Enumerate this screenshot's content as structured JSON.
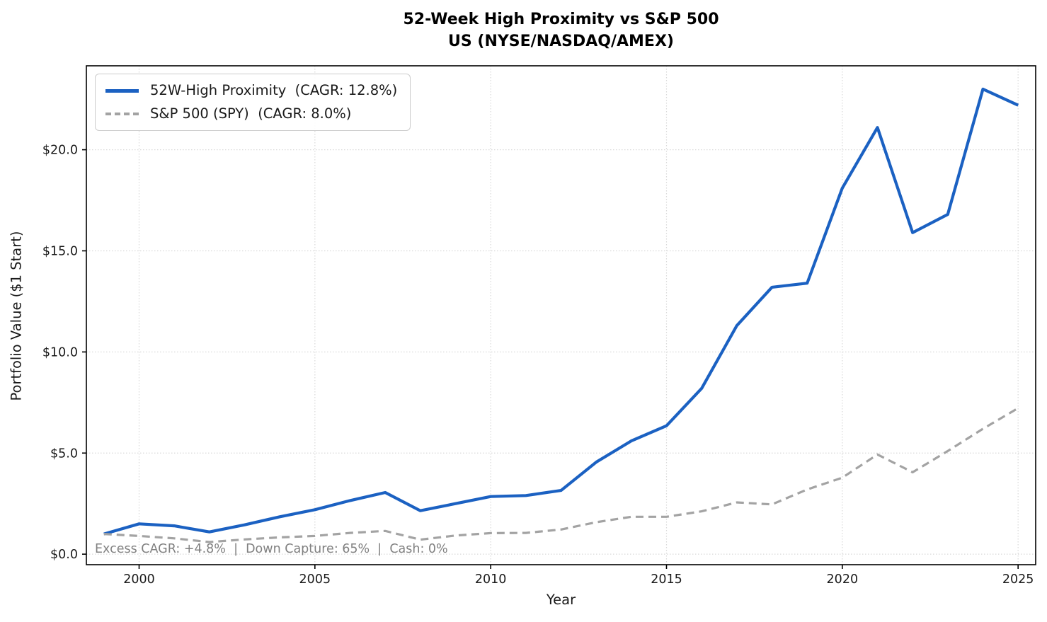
{
  "chart": {
    "title_line1": "52-Week High Proximity vs S&P 500",
    "title_line2": "US (NYSE/NASDAQ/AMEX)",
    "xlabel": "Year",
    "ylabel": "Portfolio Value ($1 Start)",
    "annotation": "Excess CAGR: +4.8%  |  Down Capture: 65%  |  Cash: 0%"
  },
  "chart_data": {
    "type": "line",
    "title": "52-Week High Proximity vs S&P 500 — US (NYSE/NASDAQ/AMEX)",
    "xlabel": "Year",
    "ylabel": "Portfolio Value ($1 Start)",
    "x": [
      1999,
      2000,
      2001,
      2002,
      2003,
      2004,
      2005,
      2006,
      2007,
      2008,
      2009,
      2010,
      2011,
      2012,
      2013,
      2014,
      2015,
      2016,
      2017,
      2018,
      2019,
      2020,
      2021,
      2022,
      2023,
      2024,
      2025
    ],
    "series": [
      {
        "name": "52W-High Proximity  (CAGR: 12.8%)",
        "color": "#1b61c2",
        "line_style": "solid",
        "line_width": 4.2,
        "values": [
          1.0,
          1.5,
          1.4,
          1.1,
          1.45,
          1.85,
          2.2,
          2.65,
          3.05,
          2.15,
          2.5,
          2.85,
          2.9,
          3.15,
          4.55,
          5.6,
          6.35,
          8.2,
          11.3,
          13.2,
          13.4,
          18.1,
          21.1,
          15.9,
          16.8,
          23.0,
          22.2
        ]
      },
      {
        "name": "S&P 500 (SPY)  (CAGR: 8.0%)",
        "color": "#a3a3a3",
        "line_style": "dashed",
        "line_width": 3.2,
        "values": [
          1.0,
          0.9,
          0.78,
          0.6,
          0.73,
          0.83,
          0.9,
          1.05,
          1.15,
          0.72,
          0.92,
          1.04,
          1.05,
          1.22,
          1.58,
          1.85,
          1.85,
          2.12,
          2.56,
          2.46,
          3.2,
          3.78,
          4.93,
          4.05,
          5.1,
          6.2,
          7.22
        ]
      }
    ],
    "xlim": [
      1998.5,
      2025.5
    ],
    "ylim": [
      -0.52,
      24.15
    ],
    "xticks": {
      "values": [
        2000,
        2005,
        2010,
        2015,
        2020,
        2025
      ],
      "labels": [
        "2000",
        "2005",
        "2010",
        "2015",
        "2020",
        "2025"
      ]
    },
    "yticks": {
      "values": [
        0,
        5,
        10,
        15,
        20
      ],
      "labels": [
        "$0.0",
        "$5.0",
        "$10.0",
        "$15.0",
        "$20.0"
      ]
    },
    "grid": true,
    "grid_color": "#d9d9d9",
    "legend_position": "upper left",
    "annotation": "Excess CAGR: +4.8%  |  Down Capture: 65%  |  Cash: 0%"
  }
}
